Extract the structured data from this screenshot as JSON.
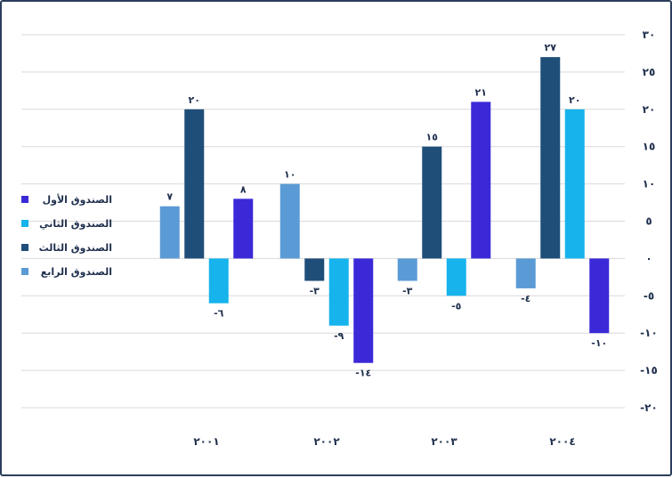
{
  "chart_data": {
    "type": "bar",
    "categories": [
      "٢٠٠١",
      "٢٠٠٢",
      "٢٠٠٣",
      "٢٠٠٤"
    ],
    "series": [
      {
        "name": "الصندوق الرابع",
        "color": "#5b9bd5",
        "values": [
          7,
          10,
          -3,
          -4
        ],
        "labels": [
          "٧",
          "١٠",
          "-٣",
          "-٤"
        ]
      },
      {
        "name": "الصندوق الثالث",
        "color": "#1f4e79",
        "values": [
          20,
          -3,
          15,
          27
        ],
        "labels": [
          "٢٠",
          "-٣",
          "١٥",
          "٢٧"
        ]
      },
      {
        "name": "الصندوق الثاني",
        "color": "#16b3ec",
        "values": [
          -6,
          -9,
          -5,
          20
        ],
        "labels": [
          "-٦",
          "-٩",
          "-٥",
          "٢٠"
        ]
      },
      {
        "name": "الصندوق الأول",
        "color": "#3b29d8",
        "values": [
          8,
          -14,
          21,
          -10
        ],
        "labels": [
          "٨",
          "-١٤",
          "٢١",
          "-١٠"
        ]
      }
    ],
    "legend_order": [
      3,
      2,
      1,
      0
    ],
    "ylim": [
      -20,
      30
    ],
    "yticks": [
      30,
      25,
      20,
      15,
      10,
      5,
      0,
      -5,
      -10,
      -15,
      -20
    ],
    "ytick_labels": [
      "٣٠",
      "٢٥",
      "٢٠",
      "١٥",
      "١٠",
      "٥",
      "٠",
      "-٥",
      "-١٠",
      "-١٥",
      "-٢٠"
    ],
    "y_axis_side": "right",
    "legend_position": "left",
    "grid": true,
    "title": "",
    "xlabel": "",
    "ylabel": ""
  }
}
